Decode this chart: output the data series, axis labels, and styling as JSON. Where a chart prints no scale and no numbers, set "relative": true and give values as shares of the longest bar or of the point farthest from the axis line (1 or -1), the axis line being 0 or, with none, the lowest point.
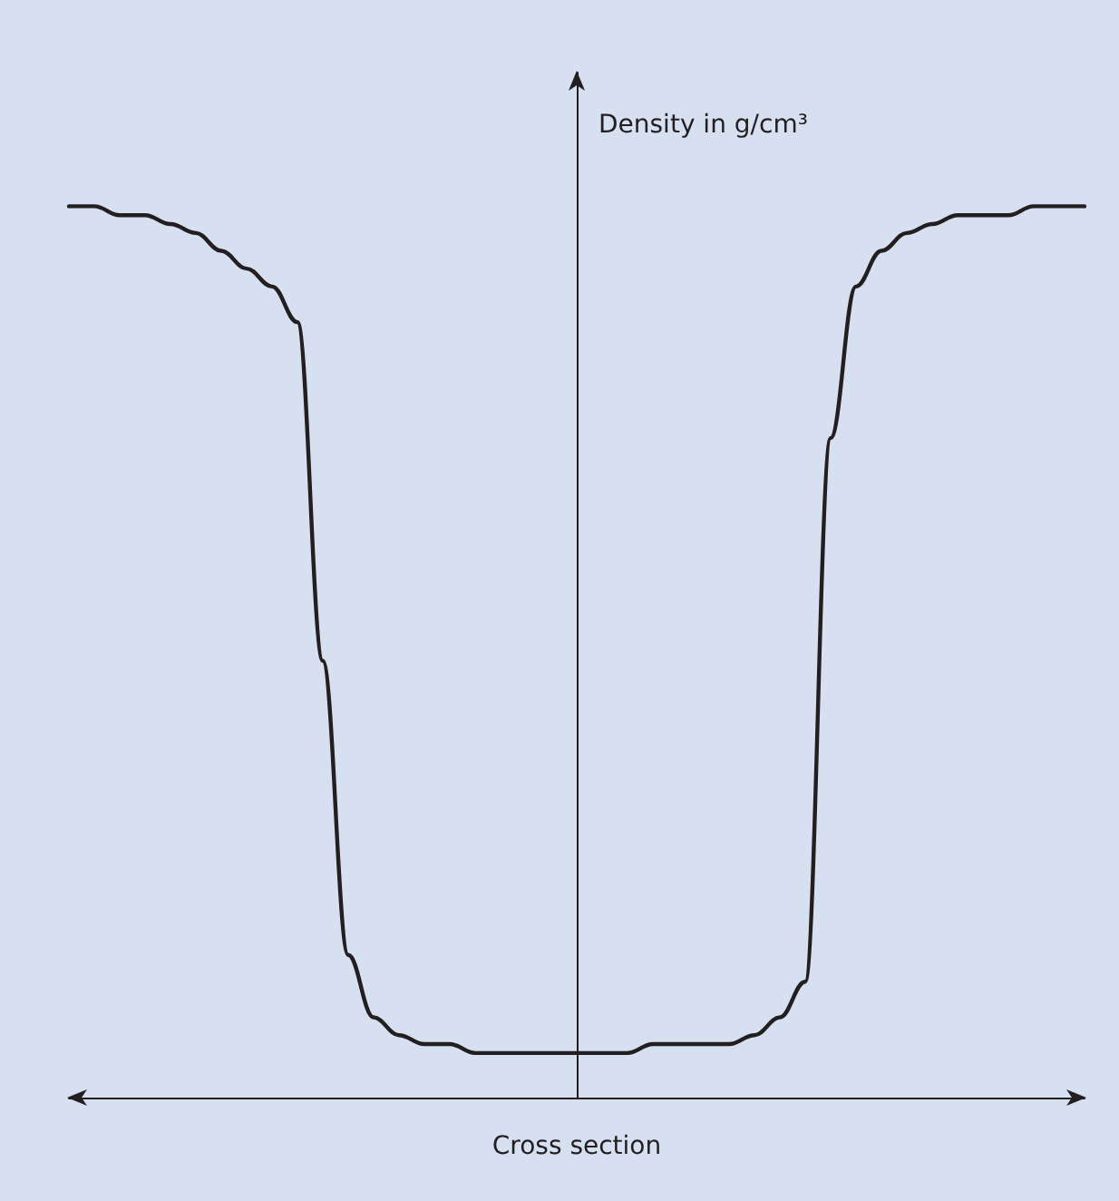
{
  "chart_data": {
    "type": "line",
    "relative": true,
    "xlabel": "Cross section",
    "ylabel": "Density in g/cm³",
    "marker": "none",
    "color": "#231f20",
    "categories": [
      null,
      null,
      null,
      null,
      null,
      null,
      null,
      null,
      null,
      null,
      null,
      null,
      null,
      null,
      null,
      null,
      null,
      null,
      null,
      null,
      null,
      null,
      null,
      null,
      null,
      null,
      null,
      null,
      null,
      null,
      null,
      null,
      null,
      null,
      null,
      null,
      null,
      null,
      null,
      null,
      null
    ],
    "values": [
      1.0,
      1.0,
      0.99,
      0.99,
      0.98,
      0.97,
      0.95,
      0.93,
      0.91,
      0.87,
      0.49,
      0.16,
      0.09,
      0.07,
      0.06,
      0.06,
      0.05,
      0.05,
      0.05,
      0.05,
      0.05,
      0.05,
      0.05,
      0.06,
      0.06,
      0.06,
      0.06,
      0.07,
      0.09,
      0.13,
      0.74,
      0.91,
      0.95,
      0.97,
      0.98,
      0.99,
      0.99,
      0.99,
      1.0,
      1.0,
      1.0
    ]
  }
}
